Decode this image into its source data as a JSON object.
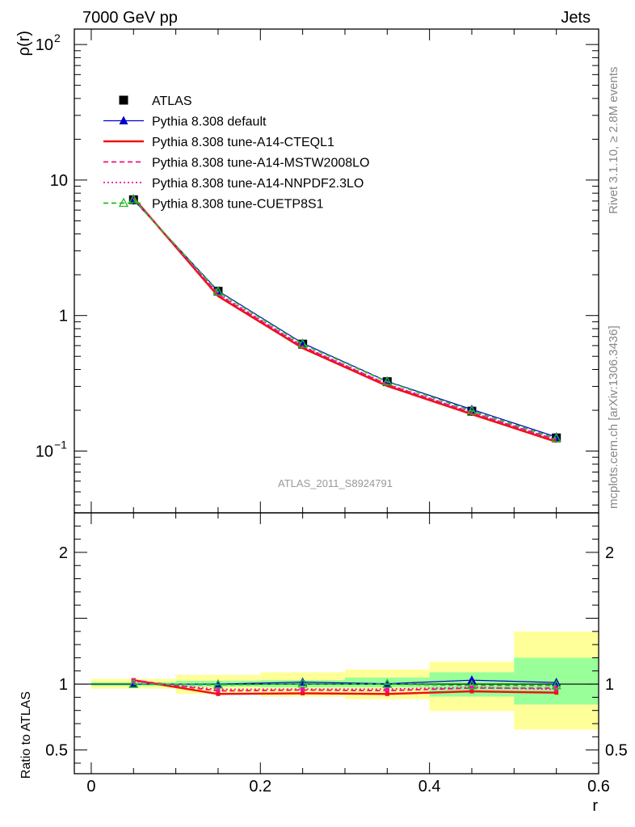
{
  "header": {
    "left": "7000 GeV pp",
    "right": "Jets"
  },
  "side_labels": {
    "rivet": "Rivet 3.1.10, ≥ 2.8M events",
    "source": "mcplots.cern.ch [arXiv:1306.3436]"
  },
  "watermark": "ATLAS_2011_S8924791",
  "chart_data": [
    {
      "type": "line",
      "ylabel": "ρ(r)",
      "yscale": "log",
      "ylim": [
        0.035,
        130
      ],
      "xlim": [
        -0.02,
        0.6
      ],
      "ytick_labels": [
        "10",
        "1"
      ],
      "x": [
        0.05,
        0.15,
        0.25,
        0.35,
        0.45,
        0.55
      ],
      "legend_position": "upper-left",
      "series": [
        {
          "name": "ATLAS",
          "style": "data",
          "color": "#000000",
          "values": [
            7.15,
            1.51,
            0.615,
            0.325,
            0.197,
            0.125
          ]
        },
        {
          "name": "Pythia 8.308 default",
          "style": "solid",
          "marker": "triangle",
          "color": "#0000cc",
          "values": [
            7.12,
            1.52,
            0.625,
            0.327,
            0.203,
            0.127
          ]
        },
        {
          "name": "Pythia 8.308 tune-A14-CTEQL1",
          "style": "solid-thick",
          "color": "#ee1111",
          "values": [
            7.4,
            1.39,
            0.575,
            0.302,
            0.187,
            0.117
          ]
        },
        {
          "name": "Pythia 8.308 tune-A14-MSTW2008LO",
          "style": "dashed",
          "color": "#ee1177",
          "values": [
            7.35,
            1.43,
            0.59,
            0.31,
            0.192,
            0.121
          ]
        },
        {
          "name": "Pythia 8.308 tune-A14-NNPDF2.3LO",
          "style": "dotted",
          "color": "#ee11aa",
          "values": [
            7.3,
            1.45,
            0.595,
            0.312,
            0.193,
            0.12
          ]
        },
        {
          "name": "Pythia 8.308 tune-CUETP8S1",
          "style": "dashed",
          "marker": "open-triangle",
          "color": "#22bb22",
          "values": [
            7.2,
            1.5,
            0.615,
            0.325,
            0.198,
            0.124
          ]
        }
      ]
    },
    {
      "type": "line",
      "xlabel": "r",
      "ylabel": "Ratio to ATLAS",
      "ylim": [
        0.32,
        2.3
      ],
      "xlim": [
        -0.02,
        0.6
      ],
      "xtick_labels": [
        "0",
        "0.2",
        "0.4",
        "0.6"
      ],
      "ytick_labels": [
        "2",
        "1",
        "0.5"
      ],
      "bands": {
        "edges": [
          0.0,
          0.1,
          0.2,
          0.3,
          0.4,
          0.5,
          0.6
        ],
        "inner_lo": [
          0.985,
          0.98,
          0.975,
          0.975,
          0.905,
          0.845
        ],
        "inner_hi": [
          1.015,
          1.025,
          1.03,
          1.05,
          1.09,
          1.2
        ],
        "outer_lo": [
          0.965,
          0.925,
          0.905,
          0.885,
          0.795,
          0.655
        ],
        "outer_hi": [
          1.04,
          1.07,
          1.09,
          1.11,
          1.17,
          1.4
        ],
        "inner_color": "#99ff99",
        "outer_color": "#ffff99"
      },
      "x": [
        0.05,
        0.15,
        0.25,
        0.35,
        0.45,
        0.55
      ],
      "series": [
        {
          "name": "Pythia 8.308 default",
          "style": "solid",
          "marker": "triangle",
          "color": "#0000cc",
          "values": [
            1.0,
            1.0,
            1.015,
            1.003,
            1.03,
            1.012
          ]
        },
        {
          "name": "Pythia 8.308 tune-A14-CTEQL1",
          "style": "solid-thick",
          "color": "#ee1111",
          "values": [
            1.03,
            0.925,
            0.93,
            0.925,
            0.945,
            0.935
          ]
        },
        {
          "name": "Pythia 8.308 tune-A14-MSTW2008LO",
          "style": "dashed",
          "color": "#ee1177",
          "values": [
            1.03,
            0.948,
            0.955,
            0.95,
            0.97,
            0.97
          ]
        },
        {
          "name": "Pythia 8.308 tune-A14-NNPDF2.3LO",
          "style": "dotted",
          "color": "#ee11aa",
          "values": [
            1.02,
            0.96,
            0.962,
            0.962,
            0.975,
            0.96
          ]
        },
        {
          "name": "Pythia 8.308 tune-CUETP8S1",
          "style": "dashed",
          "marker": "open-triangle",
          "color": "#22bb22",
          "values": [
            1.0,
            0.995,
            1.002,
            1.0,
            0.99,
            0.99
          ]
        }
      ]
    }
  ]
}
